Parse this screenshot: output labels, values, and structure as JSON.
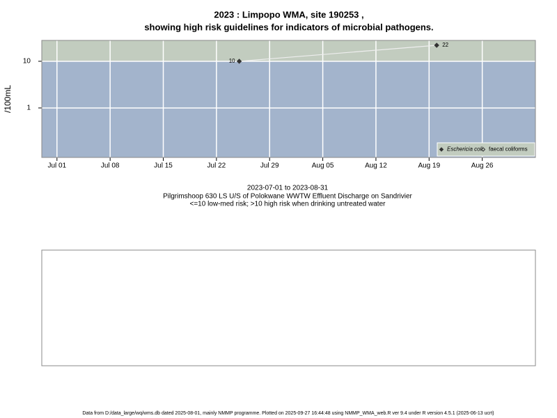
{
  "chart_data": {
    "type": "scatter",
    "title": "2023 : Limpopo WMA, site 190253 ,",
    "subtitle": "showing high risk guidelines for indicators of microbial pathogens.",
    "y_label": "/100mL",
    "x_caption": "2023-07-01 to 2023-08-31",
    "site_caption": "Pilgrimshoop 630 LS U/S of Polokwane WWTW Effluent Discharge on Sandrivier",
    "risk_caption": "<=10 low-med risk; >10 high risk when drinking untreated water",
    "footer": "Data from D:/data_large/wq/wms.db dated 2025-08-01, mainly NMMP programme. Plotted on 2025-09-27 16:44:48 using NMMP_WMA_web.R ver 9.4 under R version 4.5.1 (2025-06-13 ucrt)",
    "x": [
      "2023-07-25",
      "2023-08-20"
    ],
    "series": [
      {
        "name": "Eschericia coli",
        "color": "#333333",
        "marker": "filled-diamond",
        "values": [
          10,
          22
        ]
      },
      {
        "name": "faecal coliforms",
        "color": "#333333",
        "marker": "open-diamond",
        "values": [
          null,
          null
        ]
      }
    ],
    "xlim": [
      "2023-06-29",
      "2023-09-02"
    ],
    "xticks": [
      {
        "value": "2023-07-01",
        "label": "Jul 01"
      },
      {
        "value": "2023-07-08",
        "label": "Jul 08"
      },
      {
        "value": "2023-07-15",
        "label": "Jul 15"
      },
      {
        "value": "2023-07-22",
        "label": "Jul 22"
      },
      {
        "value": "2023-07-29",
        "label": "Jul 29"
      },
      {
        "value": "2023-08-05",
        "label": "Aug 05"
      },
      {
        "value": "2023-08-12",
        "label": "Aug 12"
      },
      {
        "value": "2023-08-19",
        "label": "Aug 19"
      },
      {
        "value": "2023-08-26",
        "label": "Aug 26"
      }
    ],
    "ylim": [
      0.087,
      28
    ],
    "yticks": [
      1,
      10
    ],
    "log_y": true,
    "grid": true,
    "threshold": 10,
    "low_zone_color": "#a3b4cc",
    "high_zone_color": "#c2ccbf",
    "legend_position": "bottom-right"
  }
}
